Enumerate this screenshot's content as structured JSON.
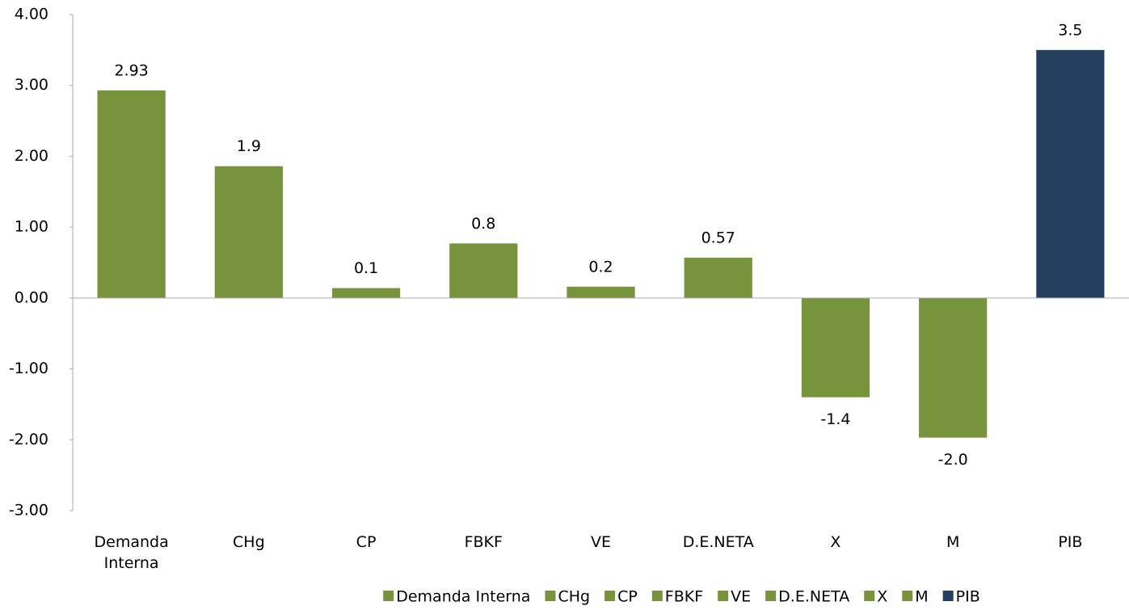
{
  "chart_data": {
    "type": "bar",
    "categories": [
      "Demanda Interna",
      "CHg",
      "CP",
      "FBKF",
      "VE",
      "D.E.NETA",
      "X",
      "M",
      "PIB"
    ],
    "values": [
      2.93,
      1.86,
      0.14,
      0.77,
      0.16,
      0.57,
      -1.4,
      -1.97,
      3.5
    ],
    "value_labels": [
      "2.93",
      "1.9",
      "0.1",
      "0.8",
      "0.2",
      "0.57",
      "-1.4",
      "-2.0",
      "3.5"
    ],
    "colors": [
      "#77933c",
      "#77933c",
      "#77933c",
      "#77933c",
      "#77933c",
      "#77933c",
      "#77933c",
      "#77933c",
      "#253f5f"
    ],
    "ylim": [
      -3,
      4
    ],
    "yticks": [
      {
        "value": -3,
        "label": "-3.00"
      },
      {
        "value": -2,
        "label": "-2.00"
      },
      {
        "value": -1,
        "label": "-1.00"
      },
      {
        "value": 0,
        "label": "0.00"
      },
      {
        "value": 1,
        "label": "1.00"
      },
      {
        "value": 2,
        "label": "2.00"
      },
      {
        "value": 3,
        "label": "3.00"
      },
      {
        "value": 4,
        "label": "4.00"
      }
    ],
    "grid": false,
    "legend": "bottom"
  }
}
